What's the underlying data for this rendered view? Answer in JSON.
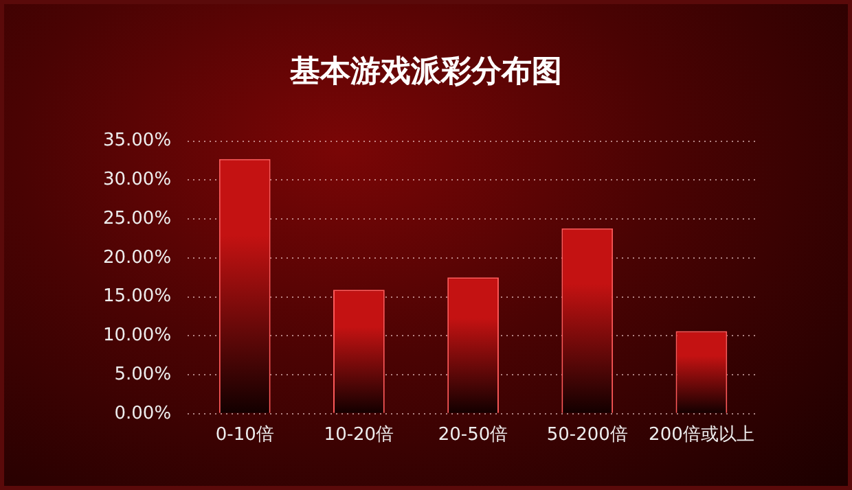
{
  "chart_data": {
    "type": "bar",
    "title": "基本游戏派彩分布图",
    "categories": [
      "0-10倍",
      "10-20倍",
      "20-50倍",
      "50-200倍",
      "200倍或以上"
    ],
    "values": [
      32.7,
      15.9,
      17.5,
      23.8,
      10.6
    ],
    "color": "#c41212",
    "ylim": [
      0,
      35
    ],
    "yticks": [
      {
        "value": 0,
        "label": "0.00%"
      },
      {
        "value": 5,
        "label": "5.00%"
      },
      {
        "value": 10,
        "label": "10.00%"
      },
      {
        "value": 15,
        "label": "15.00%"
      },
      {
        "value": 20,
        "label": "20.00%"
      },
      {
        "value": 25,
        "label": "25.00%"
      },
      {
        "value": 30,
        "label": "30.00%"
      },
      {
        "value": 35,
        "label": "35.00%"
      }
    ],
    "grid": "y"
  }
}
